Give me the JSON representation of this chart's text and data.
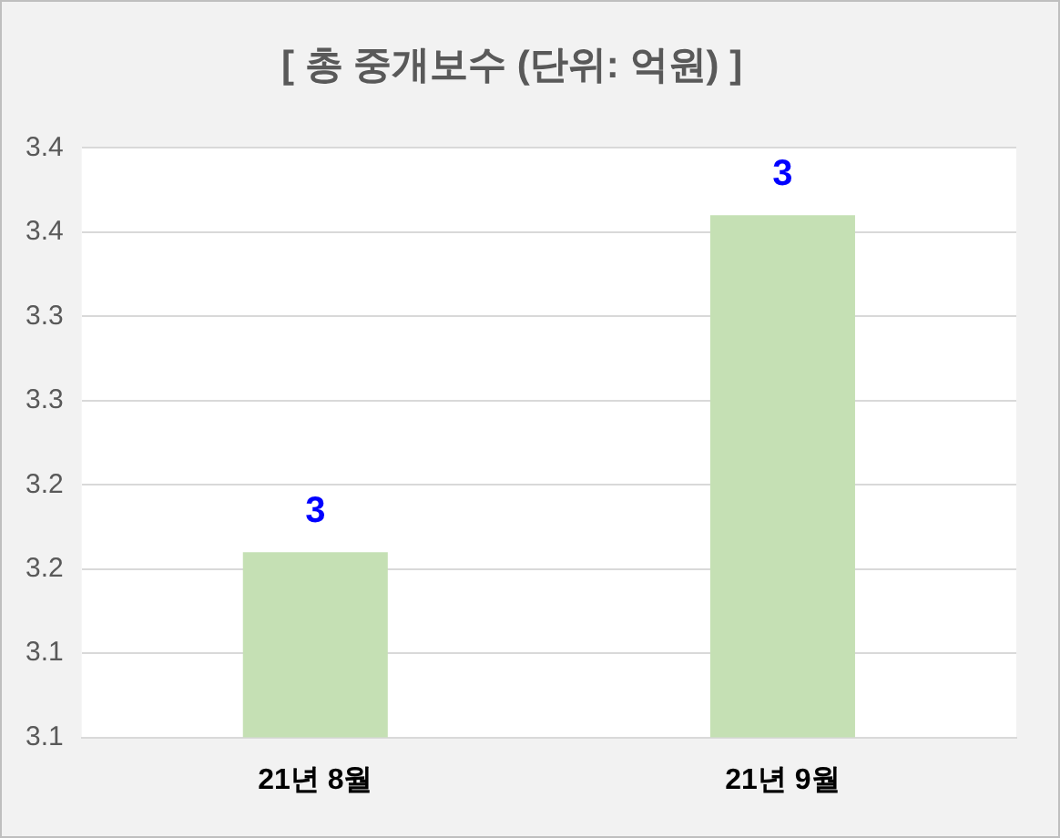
{
  "chart_data": {
    "type": "bar",
    "title": "[ 총 중개보수 (단위: 억원) ]",
    "categories": [
      "21년 8월",
      "21년 9월"
    ],
    "values": [
      3.21,
      3.41
    ],
    "color": "#c5e0b4",
    "value_labels": [
      "3",
      "3"
    ],
    "ylim": [
      3.1,
      3.45
    ],
    "yticks": [
      {
        "value": 3.1,
        "label": "3.1"
      },
      {
        "value": 3.15,
        "label": "3.1"
      },
      {
        "value": 3.2,
        "label": "3.2"
      },
      {
        "value": 3.25,
        "label": "3.2"
      },
      {
        "value": 3.3,
        "label": "3.3"
      },
      {
        "value": 3.35,
        "label": "3.3"
      },
      {
        "value": 3.4,
        "label": "3.4"
      },
      {
        "value": 3.45,
        "label": "3.4"
      }
    ],
    "grid": "y"
  }
}
